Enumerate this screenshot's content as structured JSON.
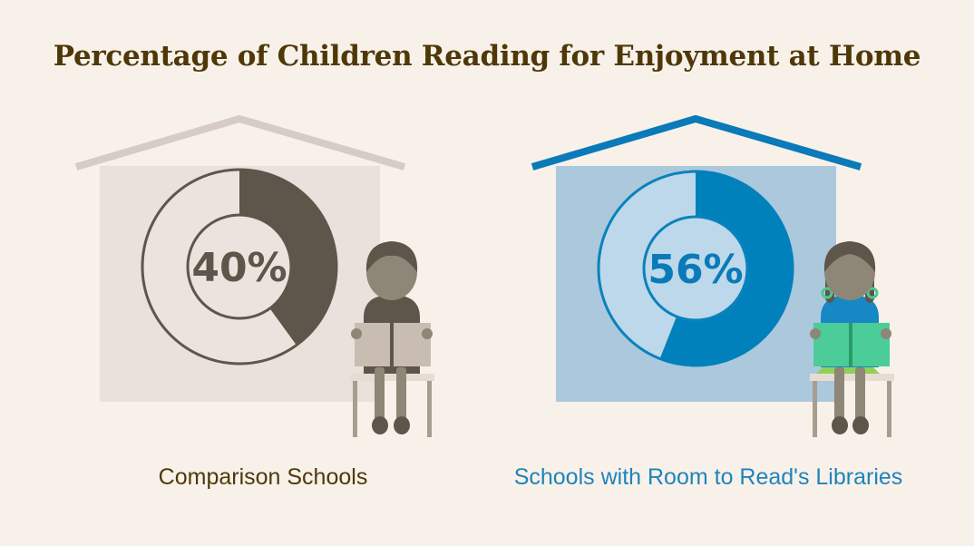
{
  "chart_data": [
    {
      "type": "pie",
      "title": "Percentage of Children Reading for Enjoyment at Home",
      "label": "Comparison Schools",
      "value": 40,
      "value_label": "40%",
      "colors": {
        "fill": "#5e554b",
        "track": "#ebe3dd",
        "ring": "#5e554b",
        "house": "#e9e1db",
        "roof": "#d6ccc5"
      }
    },
    {
      "type": "pie",
      "title": "Percentage of Children Reading for Enjoyment at Home",
      "label": "Schools with Room to Read's Libraries",
      "value": 56,
      "value_label": "56%",
      "colors": {
        "fill": "#0081bb",
        "track": "#bcd8ea",
        "ring": "#0a82bb",
        "house": "#abc8dd",
        "roof": "#0a7ab8"
      }
    }
  ],
  "title": "Percentage of Children Reading for Enjoyment at Home",
  "captions": {
    "left": "Comparison Schools",
    "right": "Schools with Room to Read's Libraries"
  },
  "icons": [
    "house-icon",
    "boy-reading-icon",
    "girl-reading-icon",
    "chair-icon",
    "book-icon"
  ]
}
